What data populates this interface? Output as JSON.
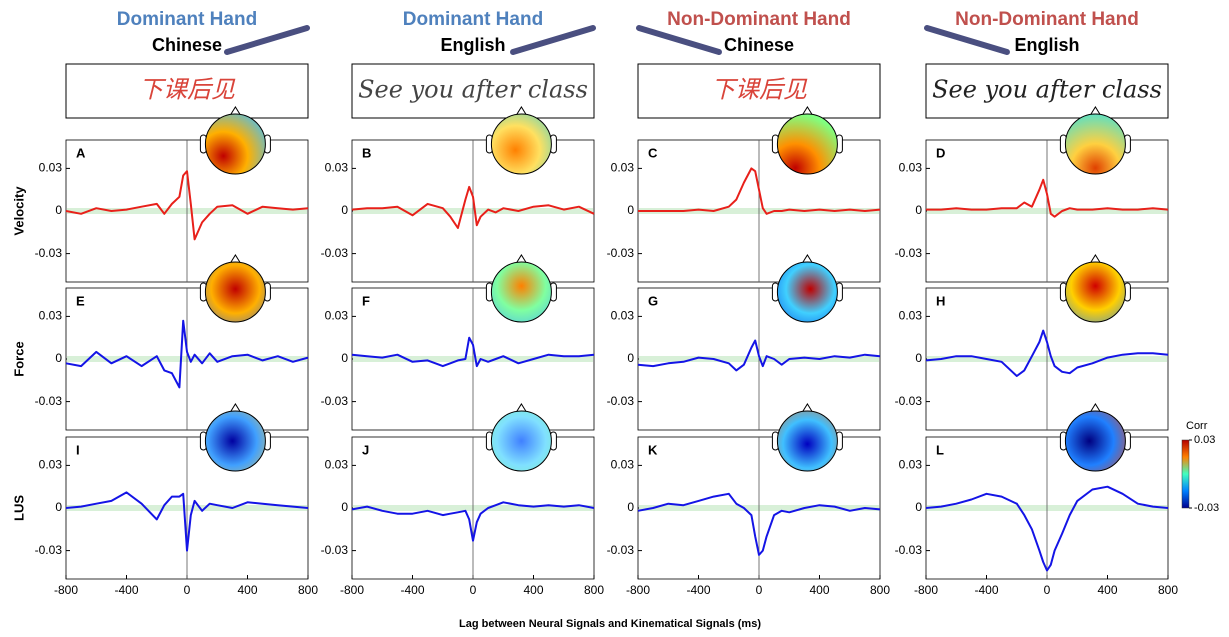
{
  "figure": {
    "xlabel": "Lag between Neural Signals and Kinematical Signals (ms)",
    "colorbar": {
      "label": "Corr",
      "ticks": [
        0.03,
        -0.03
      ],
      "lim": [
        -0.03,
        0.03
      ]
    }
  },
  "chart_data": [
    {
      "type": "line",
      "label": "A",
      "title": "Dominant Hand",
      "title_color": "#4f81bd",
      "subtitle": "Chinese",
      "handwriting": "下课后见",
      "handwriting_color": "#d9443a",
      "ylabel": "Velocity",
      "x": [
        -800,
        -700,
        -600,
        -500,
        -400,
        -300,
        -200,
        -150,
        -100,
        -50,
        -25,
        0,
        25,
        50,
        100,
        150,
        200,
        300,
        400,
        500,
        600,
        700,
        800
      ],
      "series": [
        {
          "color": "#e8201a",
          "values": [
            0,
            -0.002,
            0.002,
            0,
            0.001,
            0.003,
            0.005,
            -0.002,
            0.005,
            0.01,
            0.025,
            0.028,
            0.005,
            -0.02,
            -0.008,
            -0.002,
            0.003,
            0.004,
            -0.002,
            0.003,
            0.002,
            0.001,
            0.002
          ]
        }
      ],
      "xlim": [
        -800,
        800
      ],
      "ylim": [
        -0.05,
        0.05
      ],
      "yticks": [
        0.03,
        0,
        -0.03
      ]
    },
    {
      "type": "line",
      "label": "B",
      "title": "Dominant Hand",
      "title_color": "#4f81bd",
      "subtitle": "English",
      "handwriting": "See you after class",
      "handwriting_color": "#444444",
      "x": [
        -800,
        -700,
        -600,
        -500,
        -400,
        -300,
        -200,
        -150,
        -100,
        -50,
        -25,
        0,
        25,
        50,
        100,
        150,
        200,
        300,
        400,
        500,
        600,
        700,
        800
      ],
      "series": [
        {
          "color": "#e8201a",
          "values": [
            0.001,
            0.002,
            0.002,
            0.003,
            -0.003,
            0.005,
            0.002,
            -0.004,
            -0.012,
            0.008,
            0.017,
            0.01,
            -0.01,
            -0.004,
            0.001,
            -0.001,
            0.002,
            0,
            0.003,
            0.004,
            0.001,
            0.003,
            -0.002
          ]
        }
      ],
      "xlim": [
        -800,
        800
      ],
      "ylim": [
        -0.05,
        0.05
      ],
      "yticks": [
        0.03,
        0,
        -0.03
      ]
    },
    {
      "type": "line",
      "label": "C",
      "title": "Non-Dominant Hand",
      "title_color": "#c0504d",
      "subtitle": "Chinese",
      "handwriting": "下课后见",
      "handwriting_color": "#d9443a",
      "x": [
        -800,
        -700,
        -600,
        -500,
        -400,
        -300,
        -200,
        -150,
        -100,
        -50,
        -25,
        0,
        25,
        50,
        100,
        150,
        200,
        300,
        400,
        500,
        600,
        700,
        800
      ],
      "series": [
        {
          "color": "#e8201a",
          "values": [
            0,
            0,
            0,
            0,
            0.001,
            0,
            0.003,
            0.008,
            0.02,
            0.03,
            0.028,
            0.015,
            0.002,
            -0.002,
            0,
            0,
            0.001,
            0,
            0.001,
            0,
            0.001,
            0,
            0.001
          ]
        }
      ],
      "xlim": [
        -800,
        800
      ],
      "ylim": [
        -0.05,
        0.05
      ],
      "yticks": [
        0.03,
        0,
        -0.03
      ]
    },
    {
      "type": "line",
      "label": "D",
      "title": "Non-Dominant Hand",
      "title_color": "#c0504d",
      "subtitle": "English",
      "handwriting": "See you after class",
      "handwriting_color": "#222222",
      "x": [
        -800,
        -700,
        -600,
        -500,
        -400,
        -300,
        -200,
        -150,
        -100,
        -50,
        -25,
        0,
        25,
        50,
        100,
        150,
        200,
        300,
        400,
        500,
        600,
        700,
        800
      ],
      "series": [
        {
          "color": "#e8201a",
          "values": [
            0.001,
            0.001,
            0.002,
            0.001,
            0.001,
            0.002,
            0.002,
            0.006,
            0.003,
            0.015,
            0.022,
            0.012,
            -0.002,
            -0.004,
            0,
            0.002,
            0.001,
            0.001,
            0.002,
            0.001,
            0.001,
            0.002,
            0.001
          ]
        }
      ],
      "xlim": [
        -800,
        800
      ],
      "ylim": [
        -0.05,
        0.05
      ],
      "yticks": [
        0.03,
        0,
        -0.03
      ]
    },
    {
      "type": "line",
      "label": "E",
      "ylabel": "Force",
      "x": [
        -800,
        -700,
        -600,
        -500,
        -400,
        -300,
        -200,
        -150,
        -100,
        -50,
        -25,
        0,
        25,
        50,
        100,
        150,
        200,
        300,
        400,
        500,
        600,
        700,
        800
      ],
      "series": [
        {
          "color": "#1414e6",
          "values": [
            -0.003,
            -0.005,
            0.005,
            -0.003,
            0.002,
            -0.005,
            0.002,
            -0.008,
            -0.01,
            -0.02,
            0.027,
            0.005,
            -0.002,
            0.003,
            -0.003,
            0.004,
            -0.002,
            0.002,
            0.003,
            -0.001,
            0.002,
            -0.002,
            0.001
          ]
        }
      ],
      "xlim": [
        -800,
        800
      ],
      "ylim": [
        -0.05,
        0.05
      ],
      "yticks": [
        0.03,
        0,
        -0.03
      ]
    },
    {
      "type": "line",
      "label": "F",
      "x": [
        -800,
        -700,
        -600,
        -500,
        -400,
        -300,
        -200,
        -150,
        -100,
        -50,
        -25,
        0,
        25,
        50,
        100,
        150,
        200,
        300,
        400,
        500,
        600,
        700,
        800
      ],
      "series": [
        {
          "color": "#1414e6",
          "values": [
            0.003,
            0.002,
            0.001,
            0.003,
            -0.002,
            -0.001,
            -0.005,
            -0.003,
            -0.001,
            0,
            0.015,
            0.01,
            -0.005,
            0,
            -0.002,
            0,
            0.002,
            -0.003,
            0,
            0.003,
            0.002,
            0.002,
            0.003
          ]
        }
      ],
      "xlim": [
        -800,
        800
      ],
      "ylim": [
        -0.05,
        0.05
      ],
      "yticks": [
        0.03,
        0,
        -0.03
      ]
    },
    {
      "type": "line",
      "label": "G",
      "x": [
        -800,
        -700,
        -600,
        -500,
        -400,
        -300,
        -200,
        -150,
        -100,
        -50,
        -25,
        0,
        25,
        50,
        100,
        150,
        200,
        300,
        400,
        500,
        600,
        700,
        800
      ],
      "series": [
        {
          "color": "#1414e6",
          "values": [
            -0.004,
            -0.005,
            -0.003,
            -0.002,
            0.001,
            0,
            -0.003,
            -0.008,
            -0.004,
            0.008,
            0.013,
            0.002,
            -0.005,
            0.002,
            0,
            -0.004,
            0,
            0.001,
            0,
            0.002,
            0.001,
            0.003,
            0.002
          ]
        }
      ],
      "xlim": [
        -800,
        800
      ],
      "ylim": [
        -0.05,
        0.05
      ],
      "yticks": [
        0.03,
        0,
        -0.03
      ]
    },
    {
      "type": "line",
      "label": "H",
      "x": [
        -800,
        -700,
        -600,
        -500,
        -400,
        -300,
        -200,
        -150,
        -100,
        -50,
        -25,
        0,
        25,
        50,
        100,
        150,
        200,
        300,
        400,
        500,
        600,
        700,
        800
      ],
      "series": [
        {
          "color": "#1414e6",
          "values": [
            -0.001,
            0,
            0.002,
            0.002,
            0,
            -0.002,
            -0.012,
            -0.008,
            0.002,
            0.012,
            0.02,
            0.012,
            0.002,
            -0.005,
            -0.009,
            -0.01,
            -0.006,
            -0.003,
            0.001,
            0.003,
            0.004,
            0.004,
            0.003
          ]
        }
      ],
      "xlim": [
        -800,
        800
      ],
      "ylim": [
        -0.05,
        0.05
      ],
      "yticks": [
        0.03,
        0,
        -0.03
      ]
    },
    {
      "type": "line",
      "label": "I",
      "ylabel": "LUS",
      "x": [
        -800,
        -700,
        -600,
        -500,
        -400,
        -300,
        -200,
        -150,
        -100,
        -50,
        -25,
        0,
        25,
        50,
        100,
        150,
        200,
        300,
        400,
        500,
        600,
        700,
        800
      ],
      "series": [
        {
          "color": "#1414e6",
          "values": [
            0,
            0.001,
            0.003,
            0.005,
            0.011,
            0.003,
            -0.008,
            0.002,
            0.008,
            0.008,
            0.01,
            -0.03,
            -0.005,
            0.005,
            -0.002,
            0.003,
            0.002,
            0,
            0.004,
            0.003,
            0.002,
            0.001,
            0
          ]
        }
      ],
      "xlim": [
        -800,
        800
      ],
      "ylim": [
        -0.05,
        0.05
      ],
      "yticks": [
        0.03,
        0,
        -0.03
      ],
      "xticks": [
        -800,
        -400,
        0,
        400,
        800
      ]
    },
    {
      "type": "line",
      "label": "J",
      "x": [
        -800,
        -700,
        -600,
        -500,
        -400,
        -300,
        -200,
        -150,
        -100,
        -50,
        -25,
        0,
        25,
        50,
        100,
        150,
        200,
        300,
        400,
        500,
        600,
        700,
        800
      ],
      "series": [
        {
          "color": "#1414e6",
          "values": [
            -0.001,
            0.001,
            -0.002,
            -0.004,
            -0.004,
            -0.002,
            -0.005,
            -0.004,
            -0.003,
            -0.002,
            -0.008,
            -0.023,
            -0.01,
            -0.004,
            0,
            0.002,
            0.004,
            0.002,
            0.001,
            0.002,
            0.001,
            0.002,
            0
          ]
        }
      ],
      "xlim": [
        -800,
        800
      ],
      "ylim": [
        -0.05,
        0.05
      ],
      "yticks": [
        0.03,
        0,
        -0.03
      ],
      "xticks": [
        -800,
        -400,
        0,
        400,
        800
      ]
    },
    {
      "type": "line",
      "label": "K",
      "x": [
        -800,
        -700,
        -600,
        -500,
        -400,
        -300,
        -200,
        -150,
        -100,
        -50,
        -25,
        0,
        25,
        50,
        100,
        150,
        200,
        300,
        400,
        500,
        600,
        700,
        800
      ],
      "series": [
        {
          "color": "#1414e6",
          "values": [
            -0.002,
            0,
            0.003,
            0.002,
            0.005,
            0.008,
            0.01,
            0.003,
            0,
            -0.005,
            -0.02,
            -0.033,
            -0.03,
            -0.02,
            -0.005,
            -0.002,
            -0.003,
            0,
            0.002,
            0.001,
            -0.002,
            0,
            -0.001
          ]
        }
      ],
      "xlim": [
        -800,
        800
      ],
      "ylim": [
        -0.05,
        0.05
      ],
      "yticks": [
        0.03,
        0,
        -0.03
      ],
      "xticks": [
        -800,
        -400,
        0,
        400,
        800
      ]
    },
    {
      "type": "line",
      "label": "L",
      "x": [
        -800,
        -700,
        -600,
        -500,
        -400,
        -300,
        -200,
        -150,
        -100,
        -50,
        -25,
        0,
        25,
        50,
        100,
        150,
        200,
        300,
        400,
        500,
        600,
        700,
        800
      ],
      "series": [
        {
          "color": "#1414e6",
          "values": [
            0,
            0.001,
            0.003,
            0.006,
            0.01,
            0.008,
            0.003,
            -0.005,
            -0.015,
            -0.03,
            -0.038,
            -0.044,
            -0.04,
            -0.03,
            -0.018,
            -0.005,
            0.005,
            0.013,
            0.015,
            0.01,
            0.003,
            0.001,
            0
          ]
        }
      ],
      "xlim": [
        -800,
        800
      ],
      "ylim": [
        -0.05,
        0.05
      ],
      "yticks": [
        0.03,
        0,
        -0.03
      ],
      "xticks": [
        -800,
        -400,
        0,
        400,
        800
      ]
    }
  ]
}
